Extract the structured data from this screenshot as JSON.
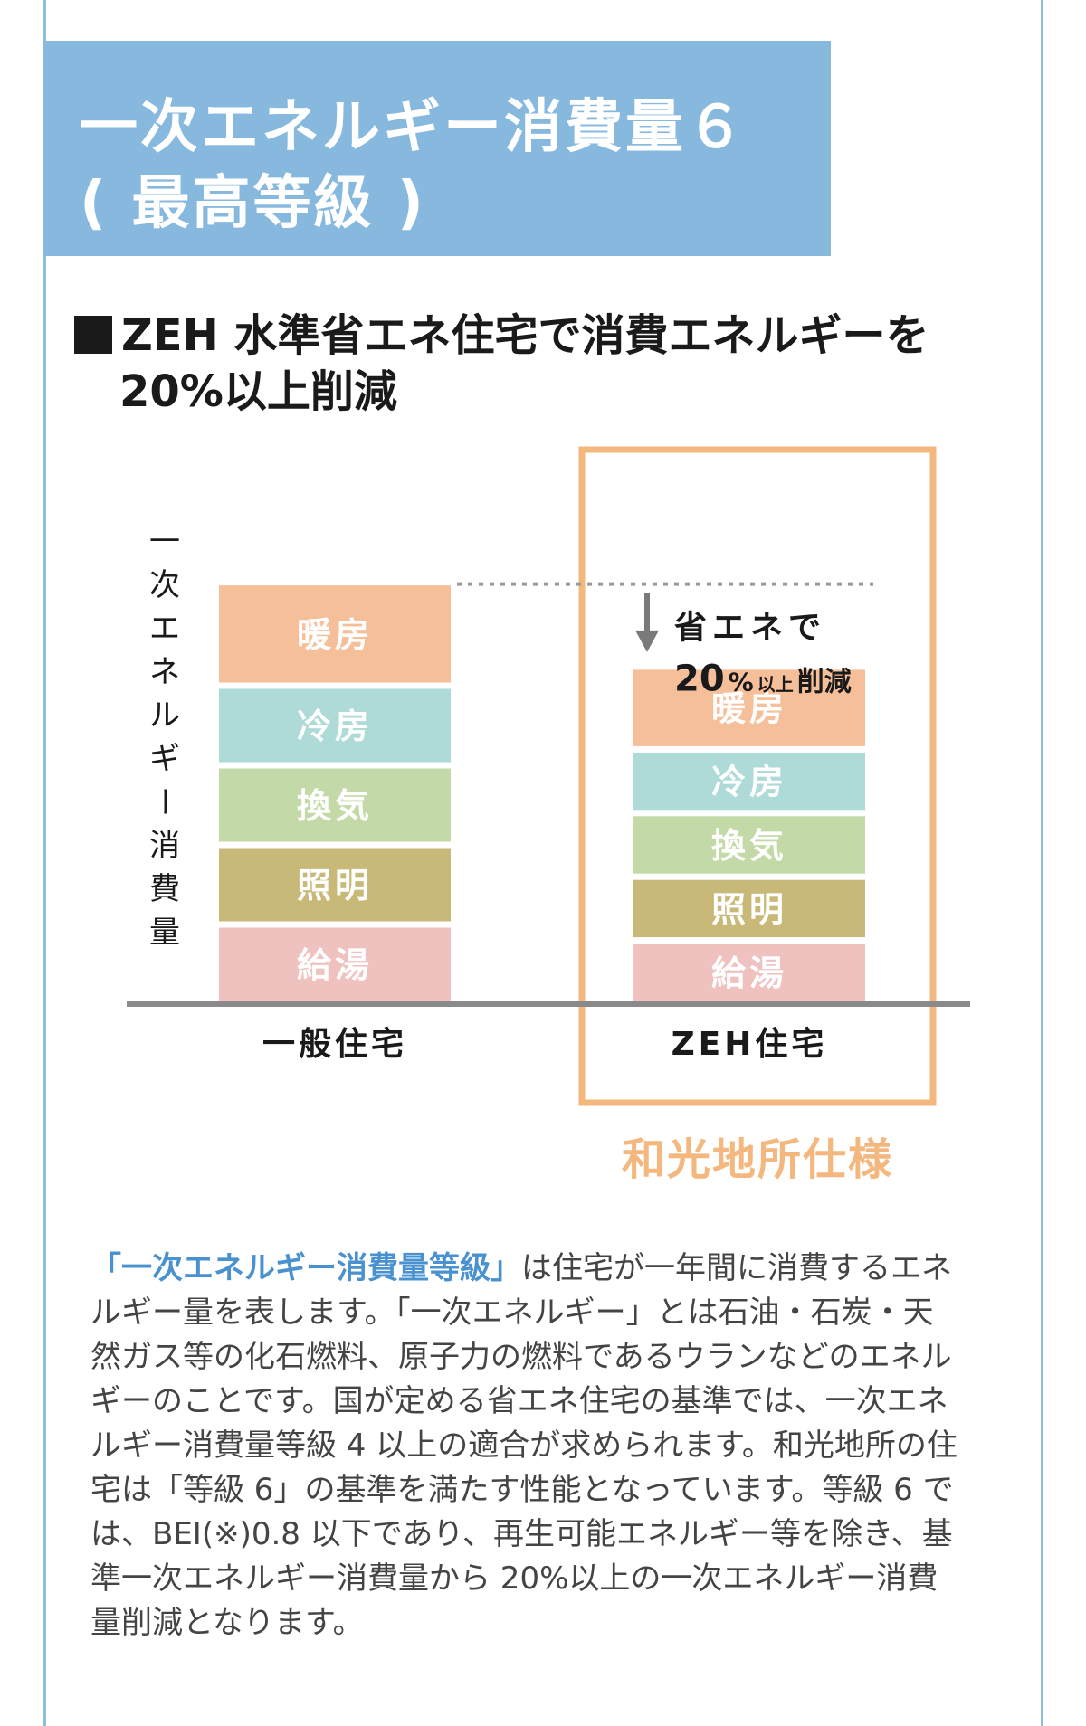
{
  "header": {
    "line1": "一次エネルギー消費量６",
    "line2": "( 最高等級 )"
  },
  "subtitle": {
    "line1": "ZEH 水準省エネ住宅で消費エネルギーを",
    "line2": "20%以上削減"
  },
  "chart_data": {
    "type": "bar",
    "stacked": true,
    "ylabel": "一次エネルギー消費量",
    "categories": [
      "一般住宅",
      "ZEH住宅"
    ],
    "series": [
      {
        "name": "給湯",
        "values": [
          1.0,
          0.8
        ],
        "color": "#efc1bf"
      },
      {
        "name": "照明",
        "values": [
          1.0,
          0.8
        ],
        "color": "#c8b978"
      },
      {
        "name": "換気",
        "values": [
          1.0,
          0.8
        ],
        "color": "#c3d9a7"
      },
      {
        "name": "冷房",
        "values": [
          1.0,
          0.8
        ],
        "color": "#aedad8"
      },
      {
        "name": "暖房",
        "values": [
          1.3,
          1.04
        ],
        "color": "#f5bf99"
      }
    ],
    "annotation": {
      "line1": "省エネで",
      "line2_num": "20",
      "line2_pct": "%",
      "line2_small": "以上",
      "line2_end": "削減"
    },
    "highlight_label": "和光地所仕様",
    "highlight_color": "#f4b77e"
  },
  "description": {
    "highlight": "「一次エネルギー消費量等級」",
    "lines": [
      "は住宅が一年間に消費するエネ",
      "ルギー量を表します。「一次エネルギー」とは石油・石炭・天",
      "然ガス等の化石燃料、原子力の燃料であるウランなどのエネル",
      "ギーのことです。国が定める省エネ住宅の基準では、一次エネ",
      "ルギー消費量等級 4 以上の適合が求められます。和光地所の住",
      "宅は「等級 6」の基準を満たす性能となっています。等級 6 で",
      "は、BEI(※)0.8 以下であり、再生可能エネルギー等を除き、基",
      "準一次エネルギー消費量から 20%以上の一次エネルギー消費",
      "量削減となります。"
    ]
  }
}
